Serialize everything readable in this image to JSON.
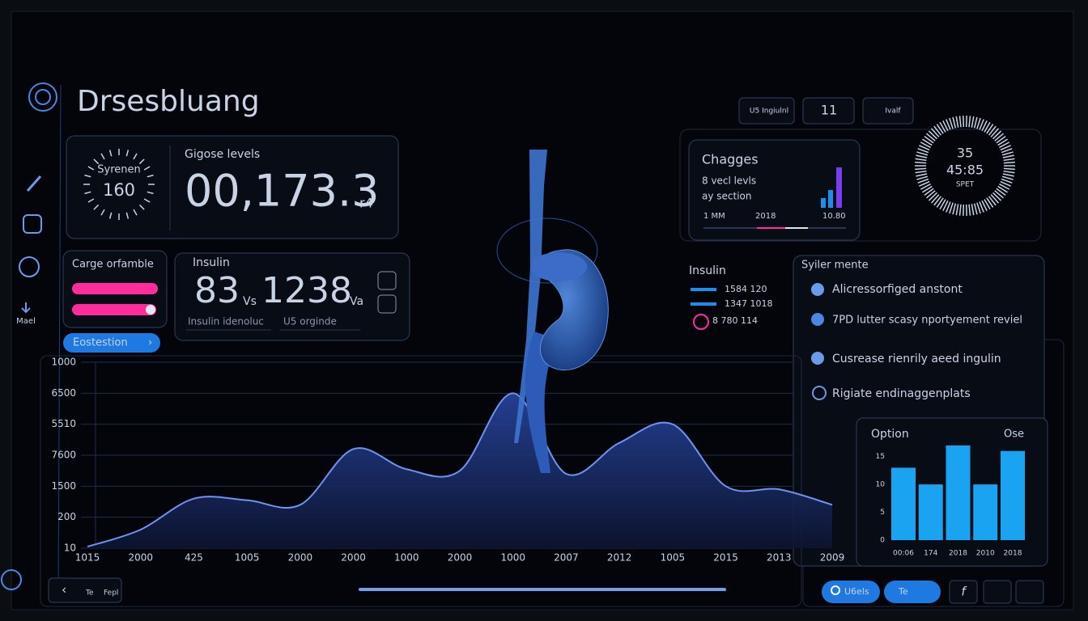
{
  "header": {
    "title": "Drsesbluang"
  },
  "sidebar": {
    "label": "Mael"
  },
  "glucose_card": {
    "gauge_label": "Syrenen",
    "gauge_value": "160",
    "label": "Gigose levels",
    "value": "00,173.3",
    "unit": "r4"
  },
  "range_card": {
    "title": "Carge orfamble",
    "button": "Eostestion"
  },
  "insulin_card": {
    "title": "Insulin",
    "value1": "83",
    "unit1": "Vs",
    "value2": "1238",
    "unit2": "Va",
    "caption1": "Insulin idenoluc",
    "caption2": "U5 orginde"
  },
  "changes_card": {
    "title": "Chagges",
    "line1": "8 vecl levls",
    "line2": "ay section",
    "labels": [
      "1 MM",
      "2018",
      "10.80"
    ]
  },
  "top_buttons": [
    "U5 Ingiulnl",
    "11",
    "Ivalf"
  ],
  "dial": {
    "value": "35",
    "time": "45:85",
    "label": "SPET"
  },
  "insulin_legend": {
    "title": "Insulin",
    "items": [
      "1584 120",
      "1347 1018",
      "8 780 114"
    ]
  },
  "list_card": {
    "title": "Syiler mente",
    "items": [
      "Alicressorfiged anstont",
      "7PD lutter scasy nportyement reviel",
      "Cusrease rienrily aeed ingulin",
      "Rigiate endinaggenplats"
    ]
  },
  "bottom_left": [
    "Te",
    "Fepl"
  ],
  "bottom_right": [
    "U6els",
    "Te",
    "f"
  ],
  "chart_data": [
    {
      "type": "area",
      "color": "#6f93f0",
      "grid": true,
      "categories": [
        "1015",
        "2000",
        "425",
        "1005",
        "2000",
        "2000",
        "1000",
        "2000",
        "1000",
        "2007",
        "2012",
        "1005",
        "2015",
        "2013",
        "2009"
      ],
      "values": [
        0.05,
        0.6,
        1.6,
        1.55,
        1.4,
        3.2,
        2.55,
        2.5,
        5.0,
        2.4,
        3.4,
        4.0,
        2.0,
        1.9,
        1.4
      ],
      "ylim": [
        0,
        6
      ],
      "yticks": [
        {
          "value": 0,
          "label": "10"
        },
        {
          "value": 1,
          "label": "200"
        },
        {
          "value": 2,
          "label": "1500"
        },
        {
          "value": 3,
          "label": "7600"
        },
        {
          "value": 4,
          "label": "5510"
        },
        {
          "value": 5,
          "label": "6500"
        },
        {
          "value": 6,
          "label": "1000"
        }
      ]
    },
    {
      "type": "bar",
      "title": "Option",
      "annotation": "Ose",
      "color": "#1aa3f0",
      "categories": [
        "00:06",
        "174",
        "2018",
        "2010",
        "2018"
      ],
      "values": [
        13,
        10,
        17,
        10,
        16
      ],
      "ylim": [
        0,
        18
      ],
      "yticks": [
        0,
        5,
        10,
        15
      ]
    }
  ]
}
